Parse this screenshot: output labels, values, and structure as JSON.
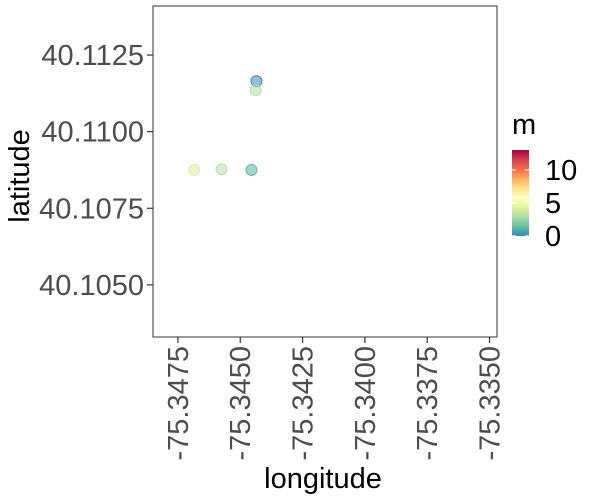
{
  "chart_data": {
    "type": "scatter",
    "xlabel": "longitude",
    "ylabel": "latitude",
    "xlim": [
      -75.3485,
      -75.3347
    ],
    "ylim": [
      40.1033,
      40.1141
    ],
    "x_ticks": [
      -75.3475,
      -75.345,
      -75.3425,
      -75.34,
      -75.3375,
      -75.335
    ],
    "x_tick_labels": [
      "-75.3475",
      "-75.3450",
      "-75.3425",
      "-75.3400",
      "-75.3375",
      "-75.3350"
    ],
    "y_ticks": [
      40.105,
      40.1075,
      40.11,
      40.1125
    ],
    "y_tick_labels": [
      "40.1050",
      "40.1075",
      "40.1100",
      "40.1125"
    ],
    "points": [
      {
        "x": -75.34685,
        "y": 40.10875,
        "m": 4
      },
      {
        "x": -75.34575,
        "y": 40.10877,
        "m": 3
      },
      {
        "x": -75.34455,
        "y": 40.10875,
        "m": 1
      },
      {
        "x": -75.34435,
        "y": 40.11165,
        "m": 0
      },
      {
        "x": -75.34438,
        "y": 40.11135,
        "m": 3
      }
    ],
    "color_legend": {
      "title": "m",
      "min": 0,
      "max": 13,
      "ticks": [
        0,
        5,
        10
      ],
      "tick_labels": [
        "0",
        "5",
        "10"
      ],
      "palette": [
        "#3288bd",
        "#66c2a5",
        "#abdda4",
        "#e6f598",
        "#ffffbf",
        "#fee08b",
        "#fdae61",
        "#f46d43",
        "#d53e4f",
        "#9e0142"
      ],
      "placement": "right"
    },
    "grid": false
  }
}
